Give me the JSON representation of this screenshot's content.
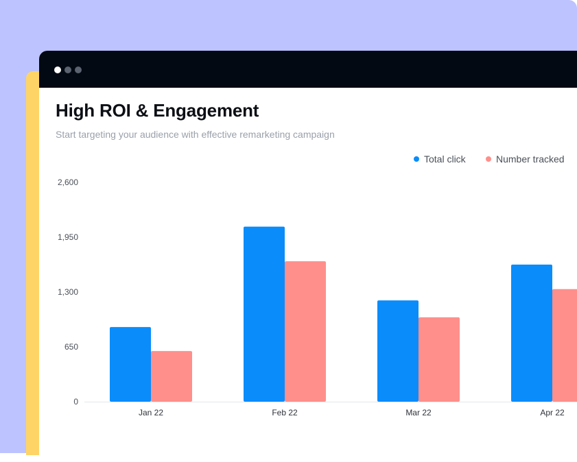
{
  "window": {
    "controls": [
      "close-dot",
      "minimize-dot",
      "maximize-dot"
    ]
  },
  "header": {
    "title": "High ROI & Engagement",
    "subtitle": "Start targeting your audience with effective remarketing campaign"
  },
  "colors": {
    "backdrop": "#bcc3ff",
    "accent_strip": "#ffd466",
    "titlebar": "#020912"
  },
  "chart_data": {
    "type": "bar",
    "title": "High ROI & Engagement",
    "subtitle": "Start targeting your audience with effective remarketing campaign",
    "categories": [
      "Jan 22",
      "Feb 22",
      "Mar 22",
      "Apr 22"
    ],
    "series": [
      {
        "name": "Total click",
        "color": "#0a8cfb",
        "values": [
          885,
          2075,
          1200,
          1625
        ]
      },
      {
        "name": "Number tracked",
        "color": "#ff8f8b",
        "values": [
          600,
          1665,
          1000,
          1335
        ]
      }
    ],
    "ylim": [
      0,
      2600
    ],
    "yticks": [
      0,
      650,
      1300,
      1950,
      2600
    ],
    "ytick_labels": [
      "0",
      "650",
      "1,300",
      "1,950",
      "2,600"
    ],
    "legend_position": "top-right",
    "grid": false,
    "xlabel": "",
    "ylabel": ""
  }
}
